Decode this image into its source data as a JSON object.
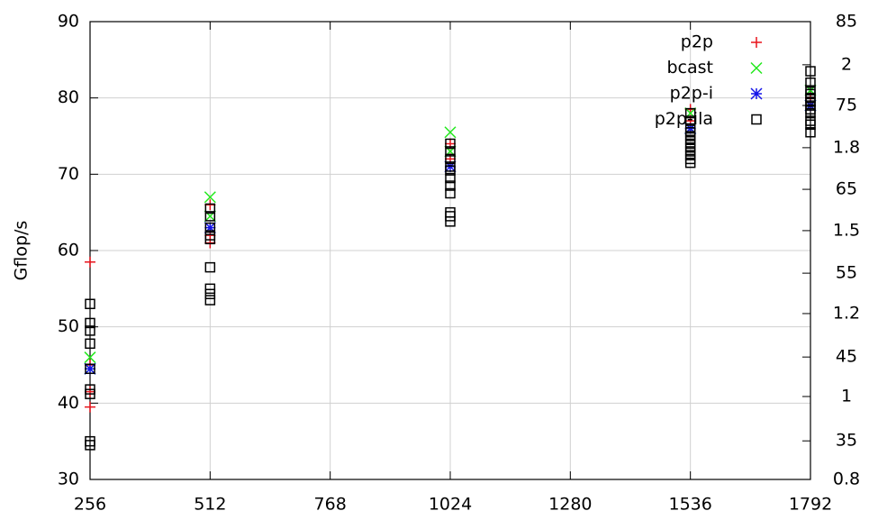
{
  "chart_data": {
    "type": "scatter",
    "ylabel": "Gflop/s",
    "xlim": [
      256,
      1792
    ],
    "xticks": [
      256,
      512,
      768,
      1024,
      1280,
      1536,
      1792
    ],
    "ylim": [
      30,
      90
    ],
    "yticks": [
      30,
      40,
      50,
      60,
      70,
      80,
      90
    ],
    "y2lim": [
      30.4,
      85
    ],
    "y2ticks": [
      35,
      45,
      55,
      65,
      75,
      85
    ],
    "y3ticks": [
      0.8,
      1.0,
      1.2,
      1.5,
      1.8,
      2.0
    ],
    "grid": true,
    "legend": "top-right",
    "series": [
      {
        "name": "p2p",
        "color": "#e8141c",
        "marker": "plus",
        "x": [
          256,
          256,
          256,
          256,
          512,
          512,
          512,
          1024,
          1024,
          1536,
          1536,
          1792,
          1792
        ],
        "values": [
          58.5,
          39.5,
          45,
          41.5,
          61,
          66,
          62,
          74,
          72,
          78.5,
          77,
          80,
          79
        ]
      },
      {
        "name": "bcast",
        "color": "#22e81c",
        "marker": "cross",
        "x": [
          256,
          256,
          512,
          512,
          1024,
          1024,
          1536,
          1536,
          1792,
          1792
        ],
        "values": [
          46,
          44.5,
          67,
          64.5,
          75.5,
          73,
          78,
          76,
          81,
          79
        ]
      },
      {
        "name": "p2p-i",
        "color": "#1414e8",
        "marker": "star",
        "x": [
          256,
          512,
          1024,
          1536,
          1792
        ],
        "values": [
          44.5,
          63,
          71,
          76,
          79
        ]
      },
      {
        "name": "p2p-ila",
        "color": "#000000",
        "marker": "square",
        "x": [
          256,
          256,
          256,
          256,
          256,
          256,
          256,
          256,
          256,
          512,
          512,
          512,
          512,
          512,
          512,
          512,
          512,
          512,
          1024,
          1024,
          1024,
          1024,
          1024,
          1024,
          1024,
          1024,
          1024,
          1024,
          1024,
          1536,
          1536,
          1536,
          1536,
          1536,
          1536,
          1536,
          1536,
          1536,
          1536,
          1536,
          1536,
          1792,
          1792,
          1792,
          1792,
          1792,
          1792,
          1792,
          1792,
          1792,
          1792,
          1792,
          1792
        ],
        "values": [
          53,
          50.5,
          49.5,
          47.8,
          44.5,
          41.8,
          41.2,
          35,
          34.5,
          65.5,
          64.5,
          63,
          62,
          61.5,
          57.8,
          55,
          54.3,
          53.5,
          74,
          73,
          72,
          71,
          70.5,
          69.5,
          68.5,
          67.5,
          65,
          64.5,
          63.8,
          78,
          77,
          76,
          75.5,
          75,
          74.5,
          74,
          73.5,
          73,
          72.5,
          72,
          71.5,
          83.5,
          82,
          81,
          80.5,
          80,
          79.5,
          79,
          78.5,
          78,
          77,
          76.5,
          75.5
        ]
      }
    ]
  }
}
